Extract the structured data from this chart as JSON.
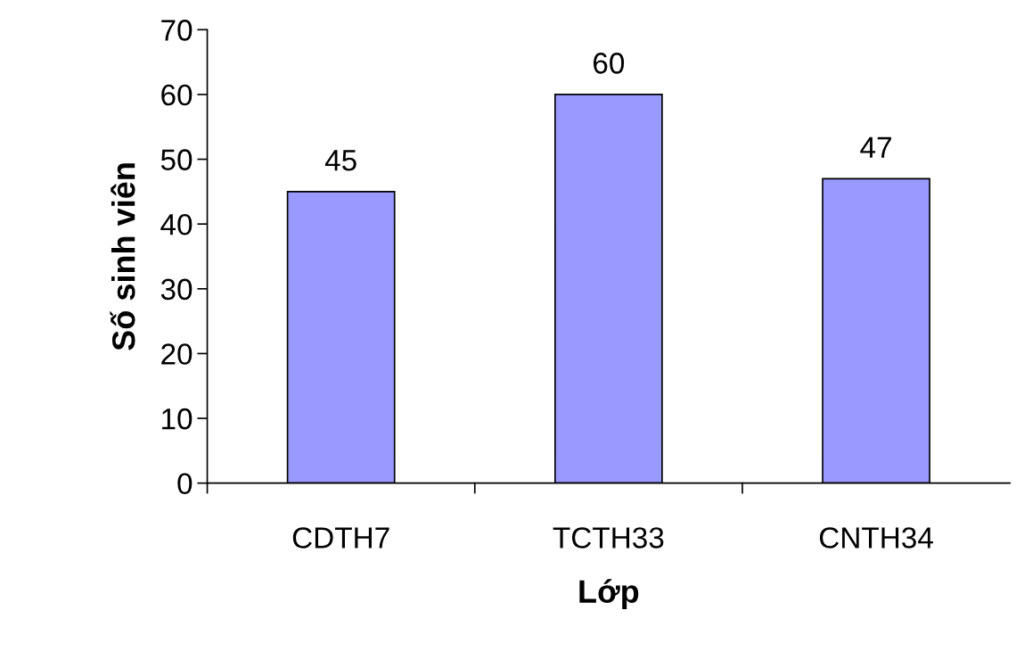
{
  "chart_data": {
    "type": "bar",
    "xlabel": "Lớp",
    "ylabel": "Số sinh viên",
    "categories": [
      "CDTH7",
      "TCTH33",
      "CNTH34"
    ],
    "values": [
      45,
      60,
      47
    ],
    "color": "#9999ff",
    "ylim": [
      0,
      70
    ],
    "yticks": [
      0,
      10,
      20,
      30,
      40,
      50,
      60,
      70
    ],
    "grid": false,
    "data_labels": true
  }
}
